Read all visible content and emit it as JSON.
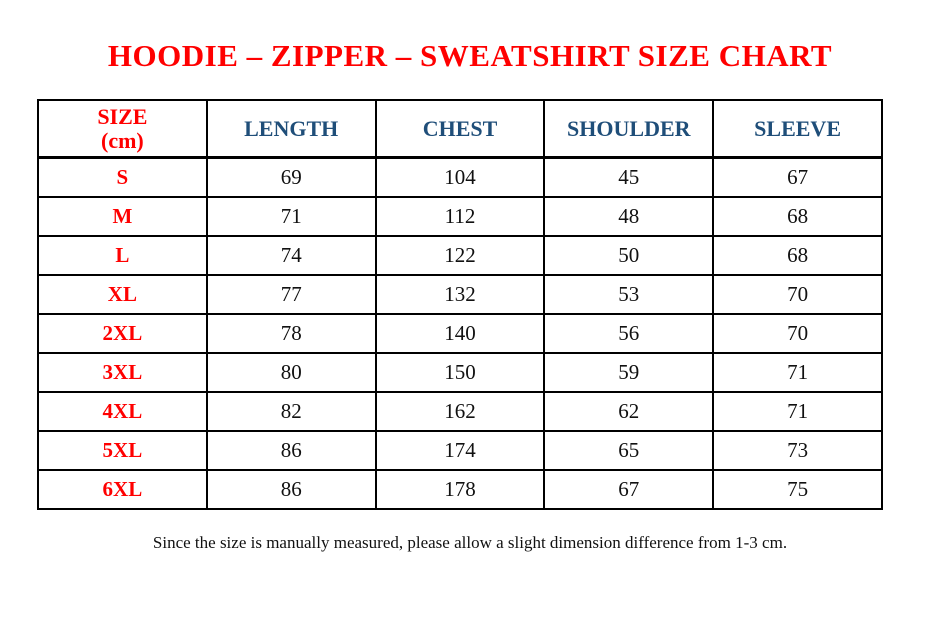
{
  "page": {
    "top_dot": ".",
    "title": "HOODIE – ZIPPER – SWEATSHIRT SIZE CHART",
    "footnote": "Since the size is manually measured, please allow a slight dimension difference from 1-3 cm."
  },
  "colors": {
    "title_red": "#ff0000",
    "header_blue": "#1f4e79",
    "body_text": "#111111",
    "border": "#000000",
    "background": "#ffffff"
  },
  "table": {
    "size_header": {
      "line1": "SIZE",
      "line2": "(cm)"
    },
    "columns": [
      "LENGTH",
      "CHEST",
      "SHOULDER",
      "SLEEVE"
    ],
    "rows": [
      {
        "size": "S",
        "length": "69",
        "chest": "104",
        "shoulder": "45",
        "sleeve": "67"
      },
      {
        "size": "M",
        "length": "71",
        "chest": "112",
        "shoulder": "48",
        "sleeve": "68"
      },
      {
        "size": "L",
        "length": "74",
        "chest": "122",
        "shoulder": "50",
        "sleeve": "68"
      },
      {
        "size": "XL",
        "length": "77",
        "chest": "132",
        "shoulder": "53",
        "sleeve": "70"
      },
      {
        "size": "2XL",
        "length": "78",
        "chest": "140",
        "shoulder": "56",
        "sleeve": "70"
      },
      {
        "size": "3XL",
        "length": "80",
        "chest": "150",
        "shoulder": "59",
        "sleeve": "71"
      },
      {
        "size": "4XL",
        "length": "82",
        "chest": "162",
        "shoulder": "62",
        "sleeve": "71"
      },
      {
        "size": "5XL",
        "length": "86",
        "chest": "174",
        "shoulder": "65",
        "sleeve": "73"
      },
      {
        "size": "6XL",
        "length": "86",
        "chest": "178",
        "shoulder": "67",
        "sleeve": "75"
      }
    ]
  }
}
